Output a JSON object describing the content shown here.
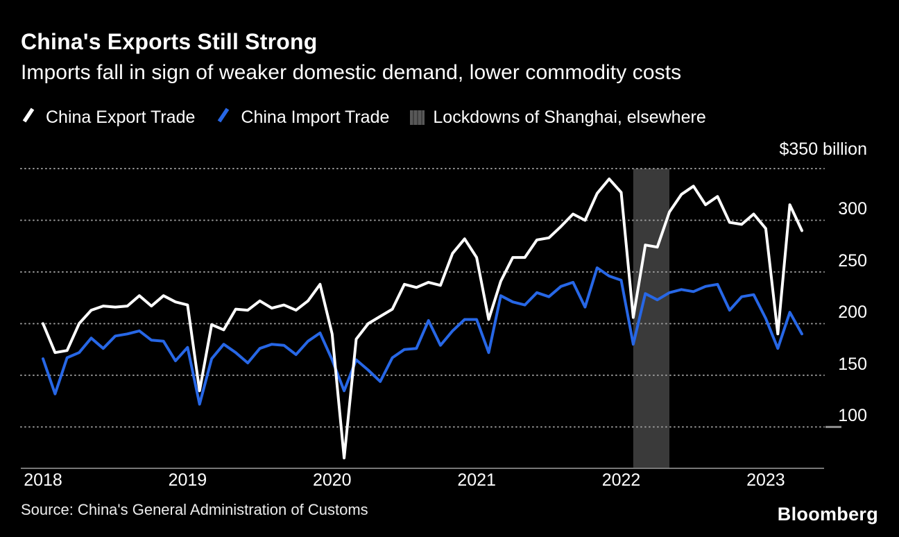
{
  "header": {
    "title": "China's Exports Still Strong",
    "subtitle": "Imports fall in sign of weaker domestic demand, lower commodity costs"
  },
  "legend": {
    "items": [
      {
        "label": "China Export Trade",
        "color": "#ffffff",
        "swatch": "line"
      },
      {
        "label": "China Import Trade",
        "color": "#2767E6",
        "swatch": "line"
      },
      {
        "label": "Lockdowns of Shanghai, elsewhere",
        "color": "#4d4d4d",
        "swatch": "square"
      }
    ]
  },
  "y_axis": {
    "top_label": "$350 billion",
    "ticks": [
      300,
      250,
      200,
      150,
      100
    ]
  },
  "x_axis": {
    "years": [
      "2018",
      "2019",
      "2020",
      "2021",
      "2022",
      "2023"
    ]
  },
  "footer": {
    "source": "Source: China's General Administration of Customs",
    "brand": "Bloomberg"
  },
  "chart_data": {
    "type": "line",
    "title": "China's Exports Still Strong",
    "subtitle": "Imports fall in sign of weaker domestic demand, lower commodity costs",
    "unit": "USD billions, monthly",
    "x_start": "2018-01",
    "x_interval": "monthly",
    "ylim": [
      60,
      350
    ],
    "y_gridlines": [
      350,
      300,
      250,
      200,
      150,
      100
    ],
    "grid": "dotted",
    "legend_position": "top",
    "series": [
      {
        "name": "China Export Trade",
        "color": "#ffffff",
        "values": [
          200,
          172,
          174,
          200,
          213,
          217,
          216,
          217,
          227,
          217,
          227,
          221,
          218,
          135,
          199,
          194,
          214,
          213,
          222,
          215,
          218,
          213,
          222,
          238,
          190,
          70,
          185,
          200,
          207,
          214,
          238,
          235,
          240,
          237,
          268,
          282,
          264,
          204,
          241,
          264,
          264,
          281,
          283,
          294,
          306,
          300,
          326,
          340,
          327,
          206,
          276,
          274,
          308,
          325,
          333,
          315,
          323,
          298,
          296,
          306,
          292,
          190,
          315,
          290
        ]
      },
      {
        "name": "China Import Trade",
        "color": "#2767E6",
        "values": [
          166,
          132,
          167,
          172,
          186,
          176,
          188,
          190,
          193,
          184,
          183,
          164,
          177,
          122,
          166,
          180,
          172,
          162,
          176,
          180,
          179,
          170,
          183,
          191,
          165,
          135,
          165,
          155,
          144,
          167,
          175,
          176,
          203,
          179,
          193,
          204,
          204,
          172,
          227,
          221,
          218,
          230,
          226,
          236,
          240,
          216,
          254,
          246,
          242,
          180,
          229,
          223,
          230,
          233,
          231,
          236,
          238,
          213,
          226,
          228,
          205,
          176,
          211,
          190
        ]
      }
    ],
    "band": {
      "label": "Lockdowns of Shanghai, elsewhere",
      "start": "2022-02",
      "end": "2022-05",
      "color": "#3a3a3a"
    }
  }
}
